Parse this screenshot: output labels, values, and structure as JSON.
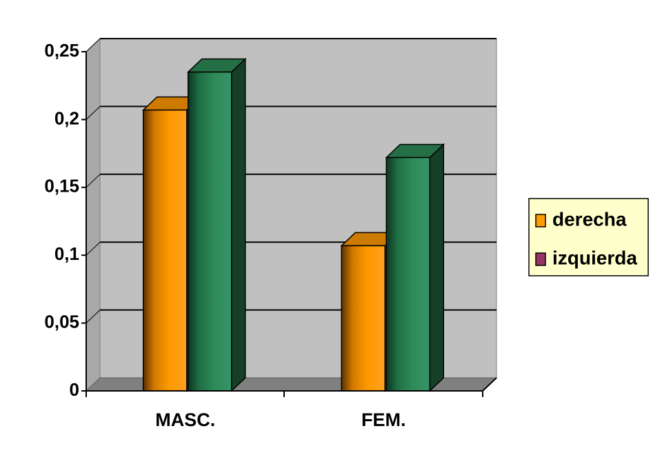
{
  "chart_data": {
    "type": "bar3d",
    "categories": [
      "MASC.",
      "FEM."
    ],
    "series": [
      {
        "name": "derecha",
        "color": "#ff9900",
        "legend_color": "#ff9900",
        "values": [
          0.207,
          0.107
        ]
      },
      {
        "name": "izquierda",
        "color": "#2e8b57",
        "legend_color": "#993366",
        "values": [
          0.235,
          0.172
        ]
      }
    ],
    "ylim": [
      0,
      0.25
    ],
    "yticks": [
      0,
      {
        "value": 0.05,
        "label": "0,05"
      },
      {
        "value": 0.1,
        "label": "0,1"
      },
      {
        "value": 0.15,
        "label": "0,15"
      },
      {
        "value": 0.2,
        "label": "0,2"
      },
      {
        "value": 0.25,
        "label": "0,25"
      }
    ],
    "grid": true,
    "legend": "right"
  }
}
